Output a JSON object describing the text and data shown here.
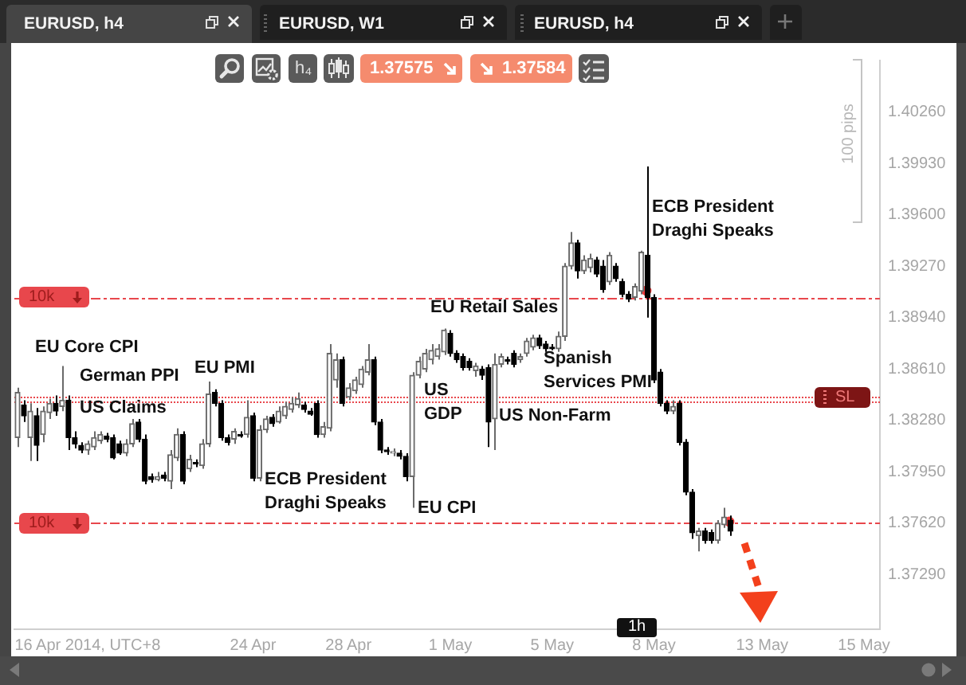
{
  "chart_data": {
    "type": "candlestick",
    "title": "EURUSD, h4",
    "categories": [
      null,
      null,
      null,
      null,
      null,
      null,
      null,
      null,
      null,
      null,
      null,
      "16 Apr 2014, UTC+8",
      null,
      null,
      null,
      null,
      null,
      null,
      null,
      null,
      null,
      null,
      null,
      null,
      null,
      null,
      null,
      null,
      null,
      null,
      null,
      null,
      null,
      null,
      null,
      null,
      null,
      "24 Apr",
      null,
      null,
      null,
      null,
      null,
      null,
      null,
      null,
      null,
      null,
      null,
      null,
      null,
      null,
      "28 Apr",
      null,
      null,
      null,
      null,
      null,
      null,
      null,
      null,
      null,
      null,
      null,
      null,
      null,
      null,
      null,
      "1 May",
      null,
      null,
      null,
      null,
      null,
      null,
      null,
      null,
      null,
      null,
      null,
      null,
      null,
      null,
      null,
      "5 May",
      null,
      null,
      null,
      null,
      null,
      null,
      null,
      null,
      null,
      null,
      null,
      null,
      null,
      null,
      null,
      "8 May",
      null,
      null,
      null,
      null,
      null,
      null,
      null,
      null,
      null,
      null,
      null,
      null,
      null,
      null,
      null,
      null,
      "13 May",
      null,
      null,
      null,
      null,
      null,
      null,
      null,
      null,
      null,
      null,
      null,
      null,
      null,
      null,
      null,
      "15 May",
      null,
      null
    ],
    "ohlc": [
      [
        1.3817,
        1.3849,
        1.3811,
        1.3846
      ],
      [
        1.3838,
        1.3841,
        1.3827,
        1.3831
      ],
      [
        1.3817,
        1.3839,
        1.3802,
        1.3834
      ],
      [
        1.3831,
        1.3836,
        1.3802,
        1.3812
      ],
      [
        1.3819,
        1.3837,
        1.3814,
        1.3834
      ],
      [
        1.3833,
        1.3842,
        1.3829,
        1.3839
      ],
      [
        1.3839,
        1.3844,
        1.3831,
        1.3834
      ],
      [
        1.3837,
        1.3863,
        1.3834,
        1.3841
      ],
      [
        1.3841,
        1.3844,
        1.3809,
        1.3817
      ],
      [
        1.3817,
        1.3821,
        1.381,
        1.3813
      ],
      [
        1.3812,
        1.3814,
        1.3807,
        1.3809
      ],
      [
        1.3809,
        1.3815,
        1.3806,
        1.3813
      ],
      [
        1.3811,
        1.3821,
        1.3809,
        1.3817
      ],
      [
        1.3815,
        1.3821,
        1.3813,
        1.3819
      ],
      [
        1.3818,
        1.382,
        1.3814,
        1.3816
      ],
      [
        1.3817,
        1.3819,
        1.3803,
        1.3804
      ],
      [
        1.3813,
        1.3815,
        1.3806,
        1.3807
      ],
      [
        1.3807,
        1.3816,
        1.3805,
        1.3813
      ],
      [
        1.3813,
        1.3829,
        1.3811,
        1.3826
      ],
      [
        1.3827,
        1.3829,
        1.3814,
        1.3816
      ],
      [
        1.3816,
        1.3819,
        1.3787,
        1.3789
      ],
      [
        1.3792,
        1.3794,
        1.3788,
        1.379
      ],
      [
        1.379,
        1.3795,
        1.3789,
        1.3792
      ],
      [
        1.3793,
        1.3795,
        1.3789,
        1.3791
      ],
      [
        1.3789,
        1.3809,
        1.3784,
        1.3806
      ],
      [
        1.3804,
        1.3823,
        1.3802,
        1.3819
      ],
      [
        1.3819,
        1.3821,
        1.3787,
        1.3789
      ],
      [
        1.3797,
        1.3806,
        1.3795,
        1.3803
      ],
      [
        1.3801,
        1.3803,
        1.3798,
        1.38
      ],
      [
        1.3799,
        1.3816,
        1.3797,
        1.3813
      ],
      [
        1.3813,
        1.3853,
        1.3811,
        1.3845
      ],
      [
        1.3846,
        1.3848,
        1.3837,
        1.3839
      ],
      [
        1.3839,
        1.3841,
        1.3815,
        1.3817
      ],
      [
        1.3817,
        1.3819,
        1.3812,
        1.3814
      ],
      [
        1.3816,
        1.3823,
        1.3813,
        1.3821
      ],
      [
        1.3819,
        1.3821,
        1.3817,
        1.3818
      ],
      [
        1.3819,
        1.3841,
        1.3817,
        1.383
      ],
      [
        1.3831,
        1.3833,
        1.3789,
        1.3791
      ],
      [
        1.3791,
        1.3825,
        1.3789,
        1.3822
      ],
      [
        1.3822,
        1.3831,
        1.382,
        1.3829
      ],
      [
        1.383,
        1.3832,
        1.3824,
        1.3826
      ],
      [
        1.3827,
        1.3837,
        1.3826,
        1.3834
      ],
      [
        1.3831,
        1.384,
        1.3829,
        1.3837
      ],
      [
        1.3835,
        1.3843,
        1.3833,
        1.3839
      ],
      [
        1.3838,
        1.3846,
        1.3836,
        1.3842
      ],
      [
        1.3838,
        1.384,
        1.3833,
        1.3835
      ],
      [
        1.3834,
        1.3836,
        1.3831,
        1.3832
      ],
      [
        1.3839,
        1.3841,
        1.3817,
        1.3819
      ],
      [
        1.3819,
        1.3827,
        1.3817,
        1.3824
      ],
      [
        1.3823,
        1.3877,
        1.3821,
        1.3871
      ],
      [
        1.3854,
        1.3871,
        1.3849,
        1.3867
      ],
      [
        1.3867,
        1.3869,
        1.3837,
        1.3839
      ],
      [
        1.3843,
        1.3852,
        1.3841,
        1.3849
      ],
      [
        1.3847,
        1.3856,
        1.3845,
        1.3854
      ],
      [
        1.3851,
        1.3863,
        1.3849,
        1.3861
      ],
      [
        1.3859,
        1.3877,
        1.3857,
        1.3867
      ],
      [
        1.3867,
        1.3869,
        1.3825,
        1.3827
      ],
      [
        1.3827,
        1.3829,
        1.3807,
        1.3809
      ],
      [
        1.3809,
        1.3811,
        1.3806,
        1.3808
      ],
      [
        1.3807,
        1.381,
        1.3805,
        1.3808
      ],
      [
        1.3807,
        1.3809,
        1.3803,
        1.3805
      ],
      [
        1.3805,
        1.3807,
        1.3789,
        1.3792
      ],
      [
        1.3792,
        1.3859,
        1.3772,
        1.3857
      ],
      [
        1.3857,
        1.3869,
        1.3855,
        1.3866
      ],
      [
        1.3861,
        1.3874,
        1.3859,
        1.3871
      ],
      [
        1.3867,
        1.3877,
        1.3864,
        1.3873
      ],
      [
        1.3869,
        1.3877,
        1.3867,
        1.3874
      ],
      [
        1.3872,
        1.3887,
        1.387,
        1.3886
      ],
      [
        1.3884,
        1.3886,
        1.3869,
        1.3871
      ],
      [
        1.3871,
        1.3873,
        1.3865,
        1.3867
      ],
      [
        1.3869,
        1.3871,
        1.386,
        1.3862
      ],
      [
        1.3866,
        1.3868,
        1.386,
        1.3862
      ],
      [
        1.386,
        1.3865,
        1.3856,
        1.3863
      ],
      [
        1.3861,
        1.3863,
        1.3854,
        1.3857
      ],
      [
        1.3862,
        1.3864,
        1.3811,
        1.3827
      ],
      [
        1.3829,
        1.3871,
        1.3809,
        1.3864
      ],
      [
        1.3864,
        1.3871,
        1.3862,
        1.3869
      ],
      [
        1.3867,
        1.3869,
        1.3864,
        1.3866
      ],
      [
        1.3871,
        1.3873,
        1.3862,
        1.3864
      ],
      [
        1.3867,
        1.3871,
        1.3865,
        1.3869
      ],
      [
        1.3871,
        1.3881,
        1.3869,
        1.3879
      ],
      [
        1.3875,
        1.3883,
        1.3873,
        1.3881
      ],
      [
        1.3881,
        1.3883,
        1.3874,
        1.3876
      ],
      [
        1.3877,
        1.3879,
        1.3872,
        1.3874
      ],
      [
        1.3875,
        1.3877,
        1.3873,
        1.3874
      ],
      [
        1.3874,
        1.3885,
        1.3872,
        1.3882
      ],
      [
        1.3882,
        1.3929,
        1.3879,
        1.3927
      ],
      [
        1.3927,
        1.3949,
        1.3925,
        1.3942
      ],
      [
        1.3942,
        1.3944,
        1.3919,
        1.3924
      ],
      [
        1.3924,
        1.3934,
        1.3922,
        1.3931
      ],
      [
        1.3926,
        1.3935,
        1.3923,
        1.3932
      ],
      [
        1.3931,
        1.3933,
        1.392,
        1.3922
      ],
      [
        1.3927,
        1.3931,
        1.391,
        1.3912
      ],
      [
        1.3917,
        1.3936,
        1.3915,
        1.3934
      ],
      [
        1.3927,
        1.3929,
        1.3917,
        1.3919
      ],
      [
        1.3917,
        1.3919,
        1.3907,
        1.3909
      ],
      [
        1.3909,
        1.3911,
        1.3904,
        1.3906
      ],
      [
        1.3907,
        1.3916,
        1.3905,
        1.3914
      ],
      [
        1.3911,
        1.3937,
        1.3909,
        1.3936
      ],
      [
        1.3934,
        1.3991,
        1.3894,
        1.3907
      ],
      [
        1.3907,
        1.3909,
        1.3852,
        1.3854
      ],
      [
        1.3859,
        1.3861,
        1.3837,
        1.3839
      ],
      [
        1.3839,
        1.3841,
        1.3832,
        1.3834
      ],
      [
        1.3834,
        1.3841,
        1.3832,
        1.3837
      ],
      [
        1.3839,
        1.3841,
        1.3812,
        1.3814
      ],
      [
        1.3814,
        1.3816,
        1.378,
        1.3782
      ],
      [
        1.3782,
        1.3784,
        1.3752,
        1.3756
      ],
      [
        1.3754,
        1.3759,
        1.3744,
        1.3757
      ],
      [
        1.3757,
        1.3759,
        1.3749,
        1.3751
      ],
      [
        1.3756,
        1.3758,
        1.3749,
        1.3751
      ],
      [
        1.3751,
        1.3764,
        1.3749,
        1.3762
      ],
      [
        1.3761,
        1.3772,
        1.3759,
        1.3766
      ],
      [
        1.3764,
        1.3767,
        1.3754,
        1.3757
      ],
      null,
      null,
      null,
      null,
      null,
      null,
      null,
      null,
      null,
      null,
      null,
      null,
      null,
      null,
      null,
      null,
      null,
      null,
      null,
      null,
      null,
      null,
      null
    ],
    "ylim": [
      1.3694,
      1.4059
    ],
    "yticks": [
      {
        "value": 1.4026,
        "label": "1.40260"
      },
      {
        "value": 1.3993,
        "label": "1.39930"
      },
      {
        "value": 1.396,
        "label": "1.39600"
      },
      {
        "value": 1.3927,
        "label": "1.39270"
      },
      {
        "value": 1.3894,
        "label": "1.38940"
      },
      {
        "value": 1.3861,
        "label": "1.38610"
      },
      {
        "value": 1.3828,
        "label": "1.38280"
      },
      {
        "value": 1.3795,
        "label": "1.37950"
      },
      {
        "value": 1.3762,
        "label": "1.37620"
      },
      {
        "value": 1.3729,
        "label": "1.37290"
      }
    ],
    "ref_lines": [
      {
        "axis": "y",
        "value": 1.3907,
        "label": "10k",
        "color": "#e8474c",
        "line_style": "dashed"
      },
      {
        "axis": "y",
        "value": 1.3843,
        "label": "SL",
        "color": "#e8474c",
        "line_style": "dotted"
      },
      {
        "axis": "y",
        "value": 1.384,
        "color": "#e8474c",
        "line_style": "dotted"
      },
      {
        "axis": "y",
        "value": 1.3762,
        "label": "10k",
        "color": "#e8474c",
        "line_style": "dashed"
      }
    ],
    "annotations": [
      "EU Core CPI",
      "German PPI",
      "US Claims",
      "EU PMI",
      "ECB President Draghi Speaks",
      "US GDP",
      "EU CPI",
      "EU Retail Sales",
      "US Non-Farm",
      "Spanish Services PMI",
      "ECB President Draghi Speaks",
      "EURUSD, W1",
      "EURUSD, h4",
      "h₄",
      "1.37575",
      "1.37584",
      "100 pips",
      "1h"
    ]
  }
}
